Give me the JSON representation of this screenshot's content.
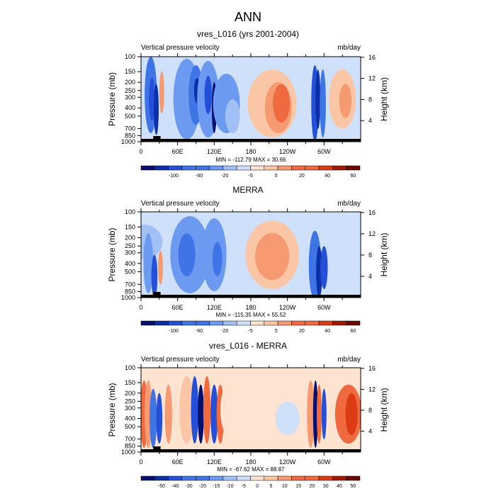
{
  "title": "ANN",
  "x_tick_labels": [
    "0",
    "60E",
    "120E",
    "180",
    "120W",
    "60W"
  ],
  "x_tick_lons": [
    0,
    60,
    120,
    180,
    240,
    300
  ],
  "pressure_ticks": [
    "100",
    "150",
    "200",
    "250",
    "300",
    "400",
    "500",
    "700",
    "850",
    "1000"
  ],
  "pressure_values": [
    100,
    150,
    200,
    250,
    300,
    400,
    500,
    700,
    850,
    1000
  ],
  "height_ticks": [
    "16",
    "12",
    "8",
    "4"
  ],
  "height_values": [
    16,
    12,
    8,
    4
  ],
  "y_left_label": "Pressure (mb)",
  "y_right_label": "Height (km)",
  "colors": {
    "blues": [
      "#07106c",
      "#0b2fa7",
      "#2450d9",
      "#3f74e6",
      "#6b9af0",
      "#a0c0f6",
      "#cfe0fa"
    ],
    "reds": [
      "#fde3d0",
      "#fbc6a6",
      "#f69a72",
      "#ef6b3f",
      "#dc3c14",
      "#a11a05",
      "#6a0a00"
    ],
    "terrain": "#000000"
  },
  "chart_data": [
    {
      "type": "heatmap",
      "title": "vres_L016 (yrs 2001-2004)",
      "left_string": "Vertical pressure velocity",
      "right_string": "mb/day",
      "stats_text": "MIN = -112.79  MAX = 30.66",
      "min": -112.79,
      "max": 30.66,
      "xlim": [
        0,
        360
      ],
      "ylim": [
        1000,
        100
      ],
      "colorbar_labels": [
        "-100",
        "-60",
        "-20",
        "-5",
        "5",
        "20",
        "40",
        "60"
      ],
      "colorbar_levels": [
        -120,
        -100,
        -80,
        -60,
        -40,
        -20,
        -10,
        -5,
        0,
        5,
        10,
        20,
        30,
        40,
        50,
        60,
        70
      ]
    },
    {
      "type": "heatmap",
      "title": "MERRA",
      "left_string": "Vertical pressure velocity",
      "right_string": "mb/day",
      "stats_text": "MIN = -115.35  MAX = 55.52",
      "min": -115.35,
      "max": 55.52,
      "xlim": [
        0,
        360
      ],
      "ylim": [
        1000,
        100
      ],
      "colorbar_labels": [
        "-100",
        "-60",
        "-20",
        "-5",
        "5",
        "20",
        "40",
        "60"
      ],
      "colorbar_levels": [
        -120,
        -100,
        -80,
        -60,
        -40,
        -20,
        -10,
        -5,
        0,
        5,
        10,
        20,
        30,
        40,
        50,
        60,
        70
      ]
    },
    {
      "type": "heatmap",
      "title": "vres_L016 - MERRA",
      "left_string": "Vertical pressure velocity",
      "right_string": "mb/day",
      "stats_text": "MIN = -67.62  MAX = 88.87",
      "min": -67.62,
      "max": 88.87,
      "xlim": [
        0,
        360
      ],
      "ylim": [
        1000,
        100
      ],
      "colorbar_labels": [
        "-50",
        "-40",
        "-30",
        "-20",
        "-15",
        "-10",
        "-5",
        "0",
        "5",
        "10",
        "15",
        "20",
        "30",
        "40",
        "50"
      ],
      "colorbar_levels": [
        -60,
        -50,
        -40,
        -30,
        -20,
        -15,
        -10,
        -5,
        0,
        5,
        10,
        15,
        20,
        30,
        40,
        50,
        60
      ]
    }
  ]
}
